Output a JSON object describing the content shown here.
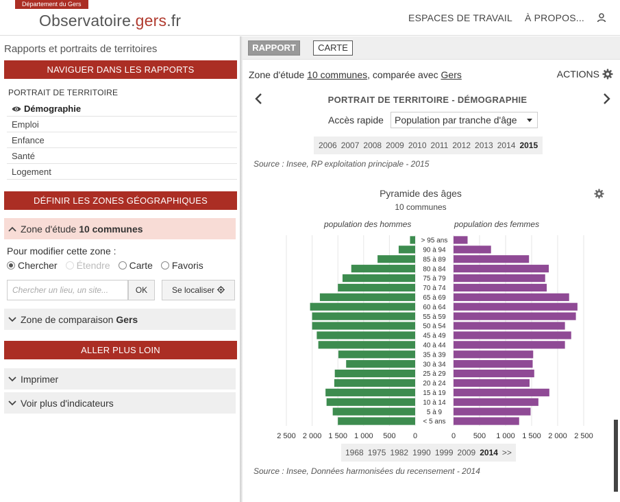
{
  "header": {
    "department_badge": "Département du Gers",
    "brand_main": "Observatoire.",
    "brand_accent": "gers",
    "brand_tld": ".fr",
    "nav": [
      "ESPACES DE TRAVAIL",
      "À PROPOS..."
    ],
    "user_icon": "user-icon"
  },
  "sidebar": {
    "title": "Rapports et portraits de territoires",
    "navigate_bar": "NAVIGUER DANS LES RAPPORTS",
    "section_label": "PORTRAIT DE TERRITOIRE",
    "items": [
      {
        "label": "Démographie",
        "active": true
      },
      {
        "label": "Emploi",
        "active": false
      },
      {
        "label": "Enfance",
        "active": false
      },
      {
        "label": "Santé",
        "active": false
      },
      {
        "label": "Logement",
        "active": false
      }
    ],
    "define_bar": "DÉFINIR LES ZONES GÉOGRAPHIQUES",
    "study_zone_prefix": "Zone d'étude",
    "study_zone_value": "10 communes",
    "modify_label": "Pour modifier cette zone :",
    "radios": [
      {
        "label": "Chercher",
        "checked": true,
        "disabled": false
      },
      {
        "label": "Étendre",
        "checked": false,
        "disabled": true
      },
      {
        "label": "Carte",
        "checked": false,
        "disabled": false
      },
      {
        "label": "Favoris",
        "checked": false,
        "disabled": false
      }
    ],
    "search_placeholder": "Chercher un lieu, un site...",
    "ok_label": "OK",
    "locate_label": "Se localiser",
    "comparison_prefix": "Zone de comparaison",
    "comparison_value": "Gers",
    "further_bar": "ALLER PLUS LOIN",
    "print_label": "Imprimer",
    "more_label": "Voir plus d'indicateurs"
  },
  "main": {
    "tabs": [
      {
        "label": "RAPPORT",
        "active": true
      },
      {
        "label": "CARTE",
        "active": false
      }
    ],
    "study_prefix": "Zone d'étude",
    "study_link": "10 communes",
    "compare_text": ", comparée avec",
    "compare_link": "Gers",
    "actions_label": "ACTIONS",
    "report_title": "PORTRAIT DE TERRITOIRE - DÉMOGRAPHIE",
    "quick_access_label": "Accès rapide",
    "quick_access_value": "Population par tranche d'âge",
    "years_top": [
      "2006",
      "2007",
      "2008",
      "2009",
      "2010",
      "2011",
      "2012",
      "2013",
      "2014",
      "2015"
    ],
    "years_top_selected": "2015",
    "source_top": "Source : Insee, RP exploitation principale - 2015",
    "years_bottom": [
      "1968",
      "1975",
      "1982",
      "1990",
      "1999",
      "2009",
      "2014",
      ">>"
    ],
    "years_bottom_selected": "2014",
    "source_bottom": "Source : Insee, Données harmonisées du recensement - 2014"
  },
  "colors": {
    "brand_red": "#ab2e24",
    "men": "#3d8c4f",
    "women": "#8f4a95",
    "zone_highlight": "#f8dcd6"
  },
  "chart_data": {
    "type": "bar",
    "orientation": "horizontal-pyramid",
    "title": "Pyramide des âges",
    "subtitle": "10 communes",
    "left_label": "population des hommes",
    "right_label": "population des femmes",
    "categories": [
      "> 95 ans",
      "90 à 94",
      "85 à 89",
      "80 à 84",
      "75 à 79",
      "70 à 74",
      "65 à 69",
      "60 à 64",
      "55 à 59",
      "50 à 54",
      "45 à 49",
      "40 à 44",
      "35 à 39",
      "30 à 34",
      "25 à 29",
      "20 à 24",
      "15 à 19",
      "10 à 14",
      "5 à 9",
      "< 5 ans"
    ],
    "series": [
      {
        "name": "population des hommes",
        "values": [
          100,
          320,
          730,
          1240,
          1410,
          1500,
          1850,
          2040,
          2000,
          2000,
          1910,
          1880,
          1490,
          1340,
          1560,
          1570,
          1740,
          1720,
          1600,
          1500
        ]
      },
      {
        "name": "population des femmes",
        "values": [
          270,
          720,
          1450,
          1830,
          1760,
          1790,
          2220,
          2380,
          2350,
          2140,
          2260,
          2140,
          1530,
          1520,
          1550,
          1460,
          1840,
          1630,
          1480,
          1260
        ]
      }
    ],
    "x_ticks_left": [
      "2 500",
      "2 000",
      "1 500",
      "1 000",
      "500",
      "0"
    ],
    "x_ticks_right": [
      "0",
      "500",
      "1 000",
      "1 500",
      "2 000",
      "2 500"
    ],
    "xlim": [
      0,
      2500
    ],
    "grid": true
  }
}
